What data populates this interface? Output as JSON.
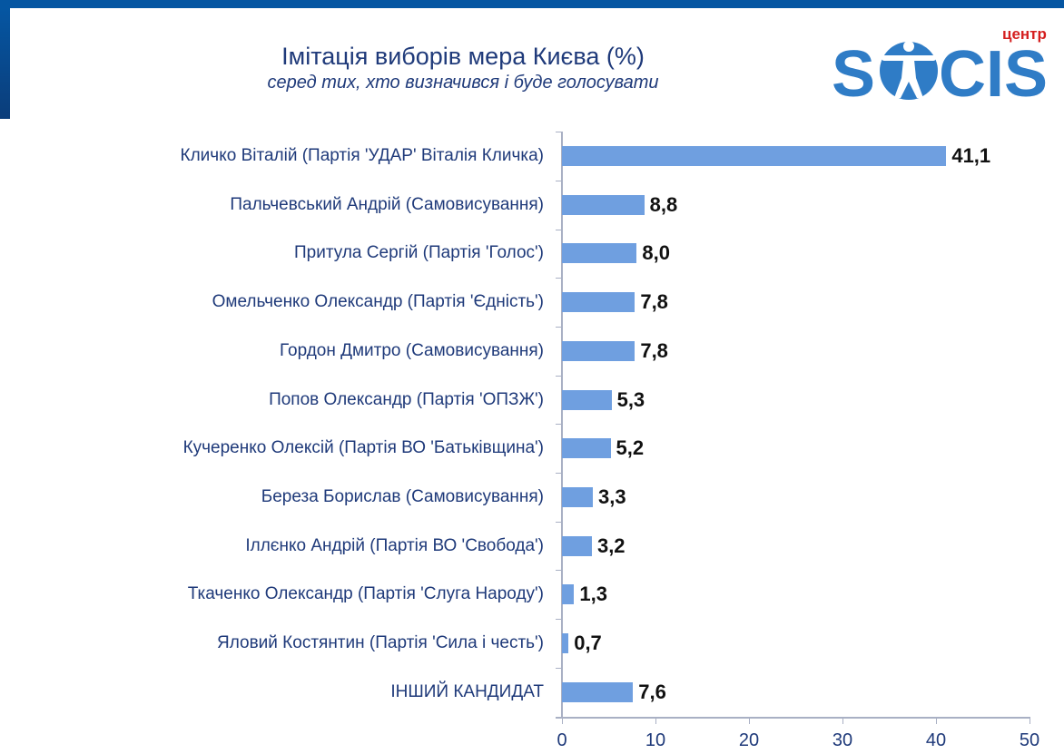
{
  "header": {
    "title": "Імітація виборів мера Києва (%)",
    "subtitle": "серед тих, хто визначився і буде голосувати"
  },
  "logo": {
    "small_text": "центр",
    "main_text_left": "S",
    "main_text_right": "CIS",
    "brand_color": "#2f7cc6",
    "accent_color": "#d51f1f"
  },
  "colors": {
    "bar": "#6f9fe0",
    "text": "#1f3a7a",
    "frame": "#0556a2"
  },
  "chart_data": {
    "type": "bar",
    "orientation": "horizontal",
    "title": "Імітація виборів мера Києва (%)",
    "subtitle": "серед тих, хто визначився і буде голосувати",
    "xlabel": "",
    "ylabel": "",
    "xlim": [
      0,
      50
    ],
    "xticks": [
      "0",
      "10",
      "20",
      "30",
      "40",
      "50"
    ],
    "grid": false,
    "legend": null,
    "categories": [
      "Кличко Віталій (Партія 'УДАР' Віталія Кличка)",
      "Пальчевський Андрій (Самовисування)",
      "Притула Сергій (Партія 'Голос')",
      "Омельченко Олександр (Партія 'Єдність')",
      "Гордон Дмитро (Самовисування)",
      "Попов Олександр (Партія 'ОПЗЖ')",
      "Кучеренко Олексій (Партія ВО 'Батьківщина')",
      "Береза Борислав (Самовисування)",
      "Іллєнко Андрій (Партія ВО 'Свобода')",
      "Ткаченко Олександр (Партія 'Слуга Народу')",
      "Яловий Костянтин (Партія 'Сила і честь')",
      "ІНШИЙ КАНДИДАТ"
    ],
    "values": [
      41.1,
      8.8,
      8.0,
      7.8,
      7.8,
      5.3,
      5.2,
      3.3,
      3.2,
      1.3,
      0.7,
      7.6
    ],
    "value_labels": [
      "41,1",
      "8,8",
      "8,0",
      "7,8",
      "7,8",
      "5,3",
      "5,2",
      "3,3",
      "3,2",
      "1,3",
      "0,7",
      "7,6"
    ]
  }
}
